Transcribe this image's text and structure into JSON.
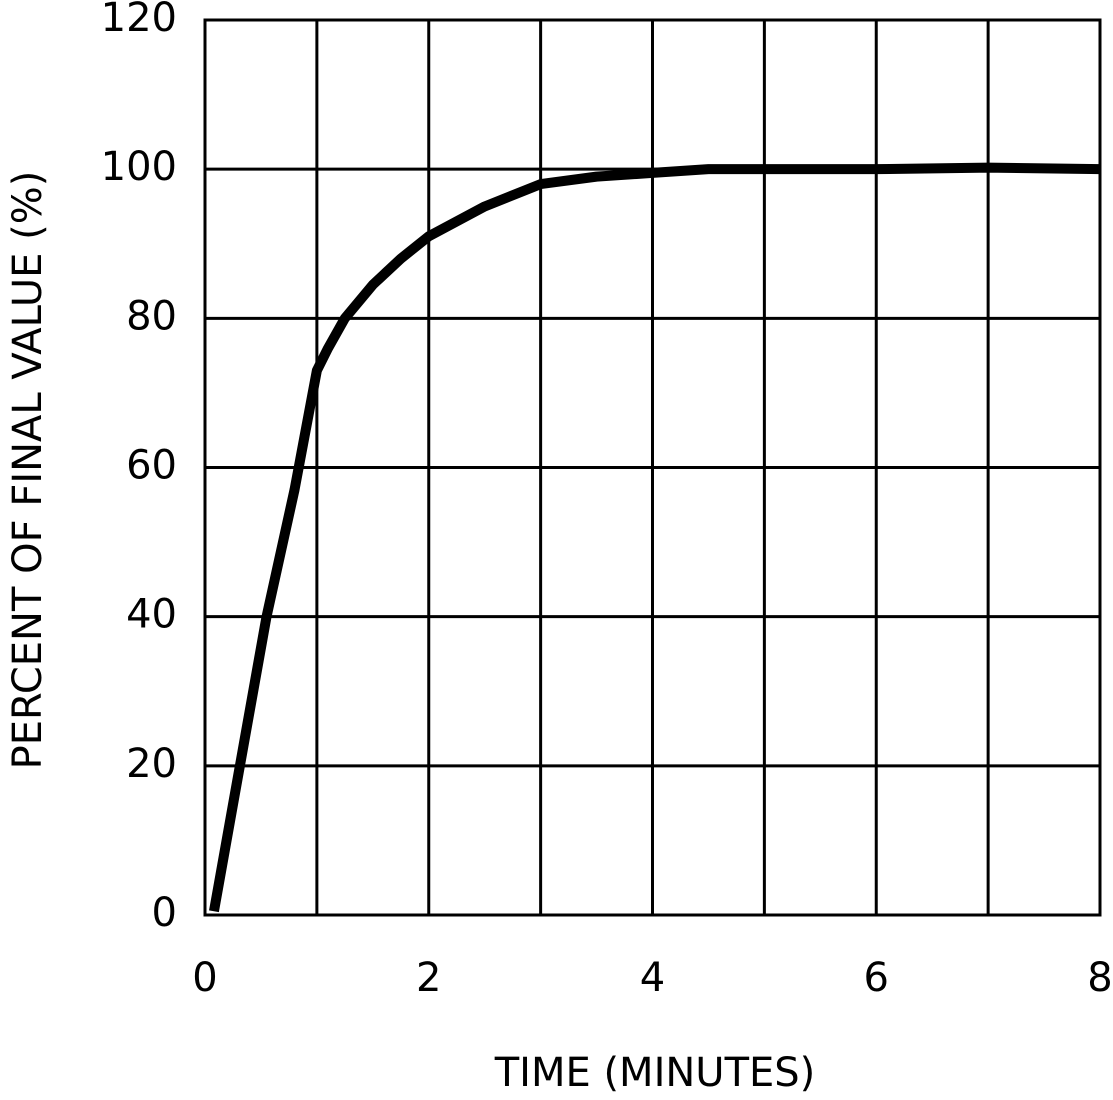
{
  "chart_data": {
    "type": "line",
    "x_label": "TIME (MINUTES)",
    "y_label": "PERCENT OF FINAL VALUE (%)",
    "x": [
      0.08,
      0.3,
      0.55,
      0.8,
      0.9,
      1.0,
      1.1,
      1.25,
      1.5,
      1.75,
      2.0,
      2.5,
      3.0,
      3.5,
      4.0,
      4.5,
      5,
      6,
      7,
      8
    ],
    "values": [
      0.5,
      19,
      40,
      57,
      65,
      73,
      76,
      80,
      84.5,
      88,
      91,
      95,
      98,
      99,
      99.5,
      100,
      100,
      100,
      100.2,
      100
    ],
    "color": "#000000",
    "xlim": [
      0,
      8
    ],
    "xticks": [
      0,
      2,
      4,
      6,
      8
    ],
    "xminorticks": [
      1,
      3,
      5,
      7
    ],
    "ylim": [
      0,
      120
    ],
    "yticks": [
      0,
      20,
      40,
      60,
      80,
      100,
      120
    ],
    "grid": true
  }
}
